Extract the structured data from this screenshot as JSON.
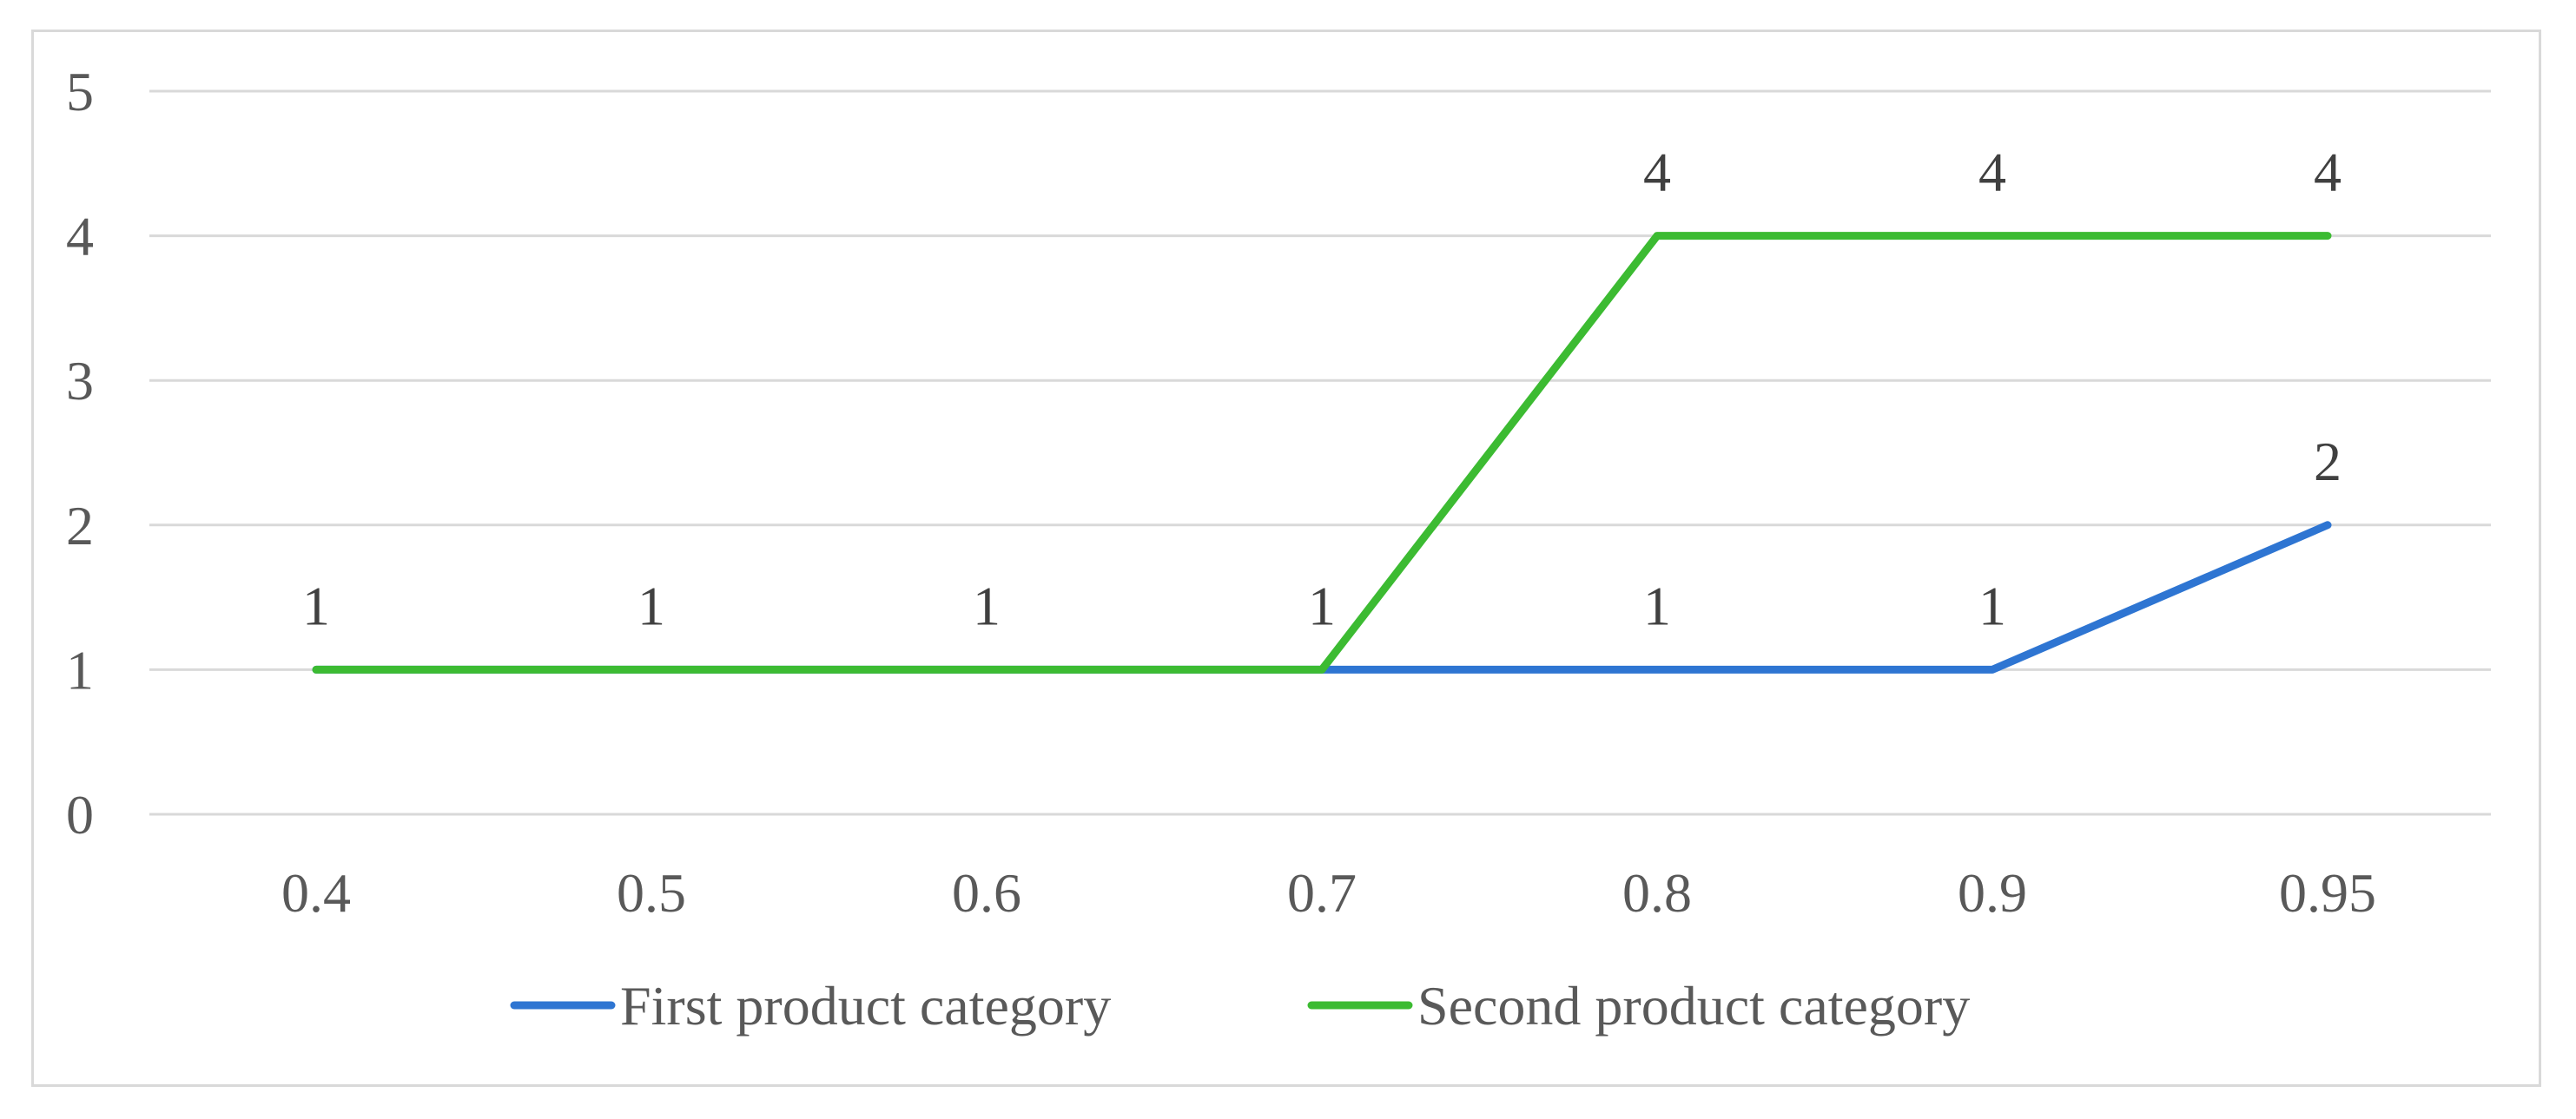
{
  "chart_data": {
    "type": "line",
    "title": "",
    "xlabel": "",
    "ylabel": "",
    "categories": [
      "0.4",
      "0.5",
      "0.6",
      "0.7",
      "0.8",
      "0.9",
      "0.95"
    ],
    "y_ticks": [
      "0",
      "1",
      "2",
      "3",
      "4",
      "5"
    ],
    "ylim": [
      0,
      5
    ],
    "grid": "horizontal",
    "legend_position": "bottom",
    "series": [
      {
        "name": "First product category",
        "color": "#2e75d2",
        "values": [
          1,
          1,
          1,
          1,
          1,
          1,
          2
        ],
        "data_labels": [
          "",
          "",
          "",
          "",
          "1",
          "1",
          "2"
        ]
      },
      {
        "name": "Second product category",
        "color": "#3cbb32",
        "values": [
          1,
          1,
          1,
          1,
          4,
          4,
          4
        ],
        "data_labels": [
          "1",
          "1",
          "1",
          "1",
          "4",
          "4",
          "4"
        ]
      }
    ]
  }
}
